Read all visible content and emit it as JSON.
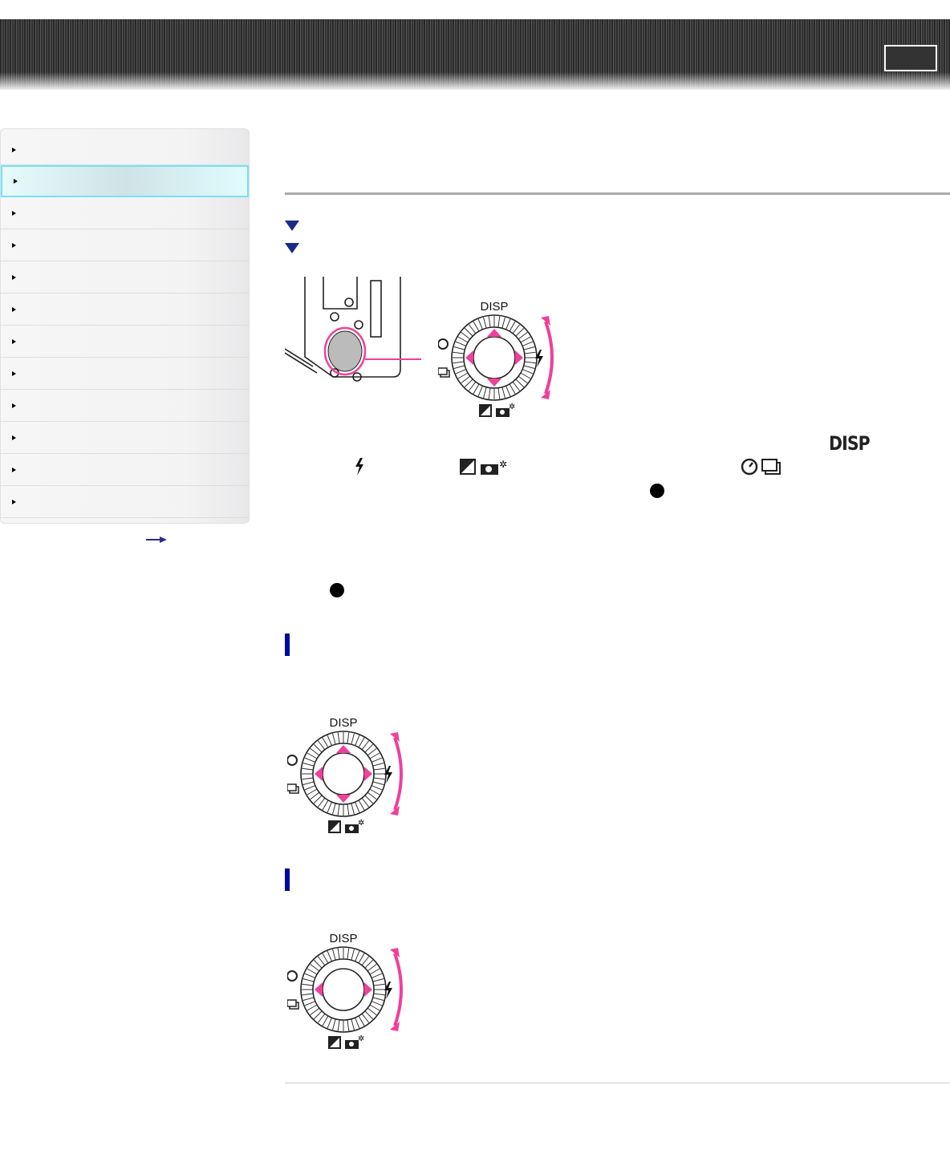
{
  "header": {
    "button": "menu-button"
  },
  "sidebar": {
    "item_count": 12,
    "active_index": 1
  },
  "illustration": {
    "label_top": "DISP",
    "accent": "#f0409a"
  },
  "inline_icons": {
    "disp_label": "DISP"
  },
  "colors": {
    "accent": "#f0409a",
    "heading_bar": "#000a9a",
    "sidebar_active_border": "#7ae0f4"
  }
}
